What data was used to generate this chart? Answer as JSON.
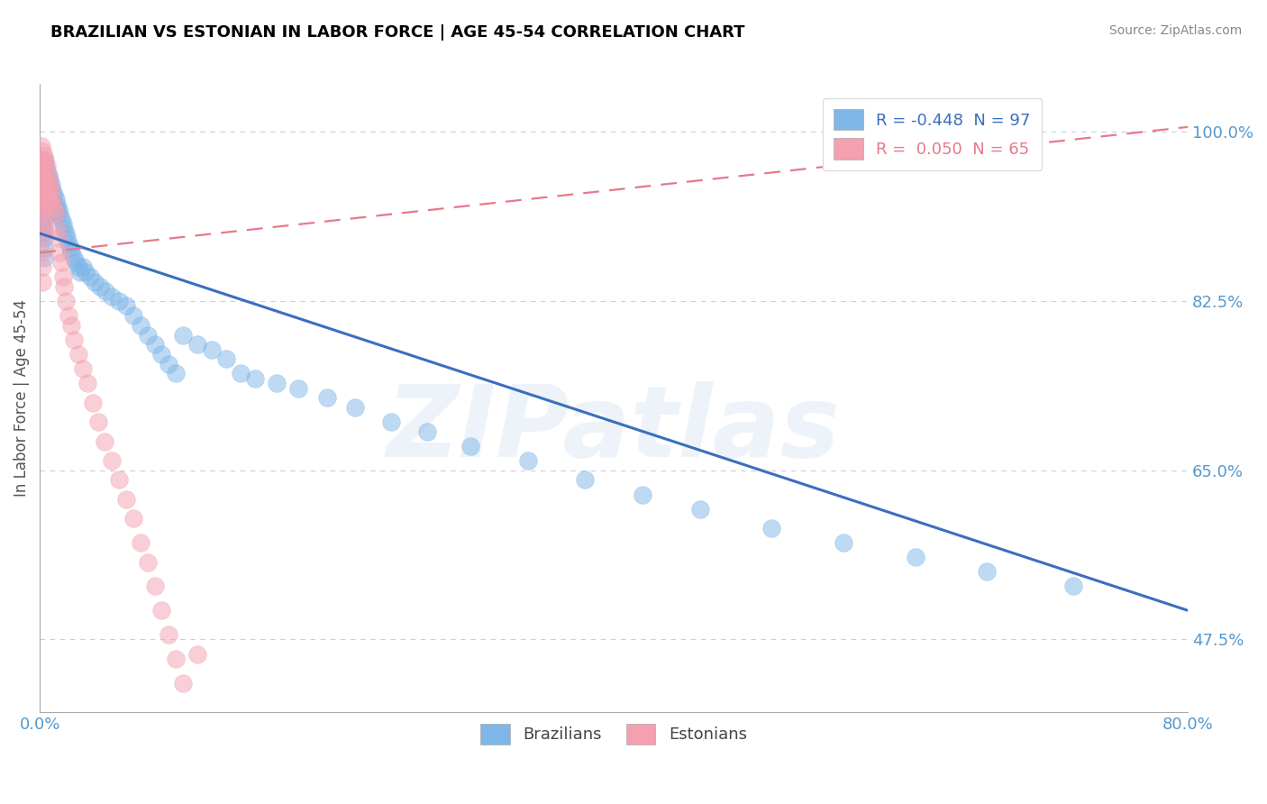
{
  "title": "BRAZILIAN VS ESTONIAN IN LABOR FORCE | AGE 45-54 CORRELATION CHART",
  "source_text": "Source: ZipAtlas.com",
  "ylabel": "In Labor Force | Age 45-54",
  "watermark": "ZIPatlas",
  "xlim": [
    0.0,
    0.8
  ],
  "ylim": [
    0.4,
    1.05
  ],
  "xtick_vals": [
    0.0,
    0.8
  ],
  "xtick_labels": [
    "0.0%",
    "80.0%"
  ],
  "ytick_vals": [
    0.475,
    0.65,
    0.825,
    1.0
  ],
  "ytick_labels": [
    "47.5%",
    "65.0%",
    "82.5%",
    "100.0%"
  ],
  "blue_color": "#7EB6E8",
  "pink_color": "#F4A0B0",
  "blue_line_color": "#3A6FBF",
  "pink_line_color": "#E8788A",
  "grid_color": "#CCCCDD",
  "background_color": "#FFFFFF",
  "tick_label_color": "#5599CC",
  "watermark_color": "#CCDDEE",
  "blue_line_x0": 0.0,
  "blue_line_y0": 0.895,
  "blue_line_x1": 0.8,
  "blue_line_y1": 0.505,
  "pink_line_x0": 0.0,
  "pink_line_y0": 0.875,
  "pink_line_x1": 0.8,
  "pink_line_y1": 1.005,
  "blue_scatter_x": [
    0.001,
    0.001,
    0.001,
    0.002,
    0.002,
    0.002,
    0.002,
    0.002,
    0.002,
    0.002,
    0.002,
    0.003,
    0.003,
    0.003,
    0.003,
    0.003,
    0.003,
    0.003,
    0.003,
    0.003,
    0.003,
    0.003,
    0.004,
    0.004,
    0.004,
    0.004,
    0.005,
    0.005,
    0.005,
    0.006,
    0.006,
    0.006,
    0.007,
    0.007,
    0.007,
    0.008,
    0.008,
    0.009,
    0.009,
    0.01,
    0.01,
    0.011,
    0.011,
    0.012,
    0.012,
    0.013,
    0.014,
    0.015,
    0.016,
    0.017,
    0.018,
    0.019,
    0.02,
    0.021,
    0.022,
    0.024,
    0.025,
    0.027,
    0.028,
    0.03,
    0.032,
    0.035,
    0.038,
    0.042,
    0.046,
    0.05,
    0.055,
    0.06,
    0.065,
    0.07,
    0.075,
    0.08,
    0.085,
    0.09,
    0.095,
    0.1,
    0.11,
    0.12,
    0.13,
    0.14,
    0.15,
    0.165,
    0.18,
    0.2,
    0.22,
    0.245,
    0.27,
    0.3,
    0.34,
    0.38,
    0.42,
    0.46,
    0.51,
    0.56,
    0.61,
    0.66,
    0.72
  ],
  "blue_scatter_y": [
    0.96,
    0.945,
    0.935,
    0.965,
    0.955,
    0.945,
    0.935,
    0.925,
    0.915,
    0.905,
    0.895,
    0.97,
    0.96,
    0.95,
    0.94,
    0.93,
    0.92,
    0.91,
    0.9,
    0.89,
    0.88,
    0.87,
    0.965,
    0.955,
    0.945,
    0.93,
    0.96,
    0.95,
    0.94,
    0.955,
    0.945,
    0.935,
    0.95,
    0.94,
    0.93,
    0.945,
    0.935,
    0.94,
    0.93,
    0.935,
    0.925,
    0.93,
    0.92,
    0.925,
    0.915,
    0.92,
    0.915,
    0.91,
    0.905,
    0.9,
    0.895,
    0.89,
    0.885,
    0.88,
    0.875,
    0.87,
    0.865,
    0.86,
    0.855,
    0.86,
    0.855,
    0.85,
    0.845,
    0.84,
    0.835,
    0.83,
    0.825,
    0.82,
    0.81,
    0.8,
    0.79,
    0.78,
    0.77,
    0.76,
    0.75,
    0.79,
    0.78,
    0.775,
    0.765,
    0.75,
    0.745,
    0.74,
    0.735,
    0.725,
    0.715,
    0.7,
    0.69,
    0.675,
    0.66,
    0.64,
    0.625,
    0.61,
    0.59,
    0.575,
    0.56,
    0.545,
    0.53
  ],
  "pink_scatter_x": [
    0.001,
    0.001,
    0.001,
    0.001,
    0.001,
    0.002,
    0.002,
    0.002,
    0.002,
    0.002,
    0.002,
    0.002,
    0.002,
    0.002,
    0.002,
    0.003,
    0.003,
    0.003,
    0.003,
    0.003,
    0.003,
    0.004,
    0.004,
    0.004,
    0.004,
    0.005,
    0.005,
    0.005,
    0.006,
    0.006,
    0.007,
    0.007,
    0.008,
    0.008,
    0.009,
    0.01,
    0.011,
    0.012,
    0.013,
    0.014,
    0.015,
    0.016,
    0.017,
    0.018,
    0.02,
    0.022,
    0.024,
    0.027,
    0.03,
    0.033,
    0.037,
    0.041,
    0.045,
    0.05,
    0.055,
    0.06,
    0.065,
    0.07,
    0.075,
    0.08,
    0.085,
    0.09,
    0.095,
    0.1,
    0.11
  ],
  "pink_scatter_y": [
    0.985,
    0.97,
    0.955,
    0.94,
    0.925,
    0.98,
    0.965,
    0.95,
    0.935,
    0.92,
    0.905,
    0.89,
    0.875,
    0.86,
    0.845,
    0.975,
    0.96,
    0.945,
    0.93,
    0.915,
    0.9,
    0.97,
    0.955,
    0.94,
    0.925,
    0.965,
    0.95,
    0.935,
    0.955,
    0.94,
    0.945,
    0.93,
    0.94,
    0.925,
    0.93,
    0.92,
    0.915,
    0.9,
    0.89,
    0.875,
    0.865,
    0.85,
    0.84,
    0.825,
    0.81,
    0.8,
    0.785,
    0.77,
    0.755,
    0.74,
    0.72,
    0.7,
    0.68,
    0.66,
    0.64,
    0.62,
    0.6,
    0.575,
    0.555,
    0.53,
    0.505,
    0.48,
    0.455,
    0.43,
    0.46
  ]
}
